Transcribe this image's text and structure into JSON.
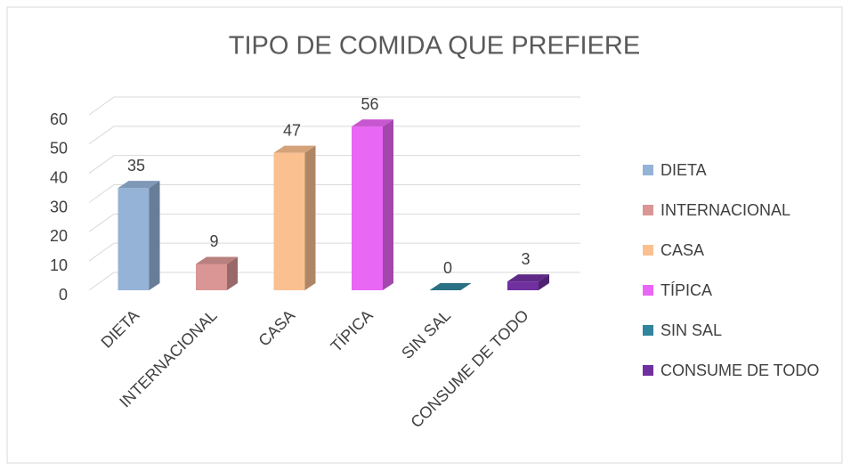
{
  "chart_data": {
    "type": "bar3d",
    "title": "TIPO DE COMIDA QUE PREFIERE",
    "categories": [
      "DIETA",
      "INTERNACIONAL",
      "CASA",
      "TÍPICA",
      "SIN SAL",
      "CONSUME DE TODO"
    ],
    "values": [
      35,
      9,
      47,
      56,
      0,
      3
    ],
    "colors": [
      "#95b3d7",
      "#d99694",
      "#fac090",
      "#ea66f5",
      "#31859c",
      "#7030a0"
    ],
    "ylim": [
      0,
      60
    ],
    "yticks": [
      0,
      10,
      20,
      30,
      40,
      50,
      60
    ],
    "grid": true,
    "legend": "right"
  }
}
